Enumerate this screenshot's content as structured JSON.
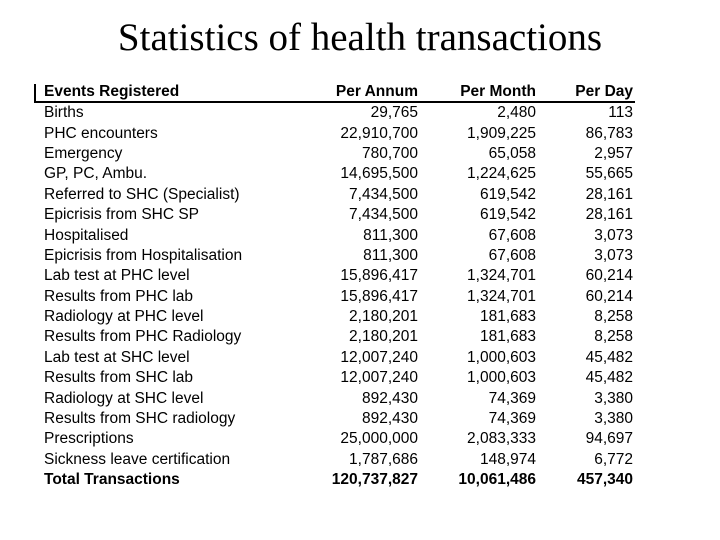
{
  "slide": {
    "title": "Statistics of health transactions",
    "background_color": "#ffffff",
    "text_color": "#000000"
  },
  "table": {
    "headers": [
      "Events Registered",
      "Per Annum",
      "Per Month",
      "Per Day"
    ],
    "rows": [
      {
        "label": "Births",
        "per_annum": "29,765",
        "per_month": "2,480",
        "per_day": "113"
      },
      {
        "label": "PHC encounters",
        "per_annum": "22,910,700",
        "per_month": "1,909,225",
        "per_day": "86,783"
      },
      {
        "label": "Emergency",
        "per_annum": "780,700",
        "per_month": "65,058",
        "per_day": "2,957"
      },
      {
        "label": "GP, PC, Ambu.",
        "per_annum": "14,695,500",
        "per_month": "1,224,625",
        "per_day": "55,665"
      },
      {
        "label": "Referred to SHC (Specialist)",
        "per_annum": "7,434,500",
        "per_month": "619,542",
        "per_day": "28,161"
      },
      {
        "label": "Epicrisis from SHC SP",
        "per_annum": "7,434,500",
        "per_month": "619,542",
        "per_day": "28,161"
      },
      {
        "label": "Hospitalised",
        "per_annum": "811,300",
        "per_month": "67,608",
        "per_day": "3,073"
      },
      {
        "label": "Epicrisis from Hospitalisation",
        "per_annum": "811,300",
        "per_month": "67,608",
        "per_day": "3,073"
      },
      {
        "label": "Lab test at PHC level",
        "per_annum": "15,896,417",
        "per_month": "1,324,701",
        "per_day": "60,214"
      },
      {
        "label": "Results from PHC lab",
        "per_annum": "15,896,417",
        "per_month": "1,324,701",
        "per_day": "60,214"
      },
      {
        "label": "Radiology at PHC level",
        "per_annum": "2,180,201",
        "per_month": "181,683",
        "per_day": "8,258"
      },
      {
        "label": "Results from PHC Radiology",
        "per_annum": "2,180,201",
        "per_month": "181,683",
        "per_day": "8,258"
      },
      {
        "label": "Lab test at SHC level",
        "per_annum": "12,007,240",
        "per_month": "1,000,603",
        "per_day": "45,482"
      },
      {
        "label": "Results from SHC lab",
        "per_annum": "12,007,240",
        "per_month": "1,000,603",
        "per_day": "45,482"
      },
      {
        "label": "Radiology at SHC level",
        "per_annum": "892,430",
        "per_month": "74,369",
        "per_day": "3,380"
      },
      {
        "label": "Results from SHC radiology",
        "per_annum": "892,430",
        "per_month": "74,369",
        "per_day": "3,380"
      },
      {
        "label": "Prescriptions",
        "per_annum": "25,000,000",
        "per_month": "2,083,333",
        "per_day": "94,697"
      },
      {
        "label": "Sickness leave certification",
        "per_annum": "1,787,686",
        "per_month": "148,974",
        "per_day": "6,772"
      }
    ],
    "total": {
      "label": "Total Transactions",
      "per_annum": "120,737,827",
      "per_month": "10,061,486",
      "per_day": "457,340"
    }
  }
}
